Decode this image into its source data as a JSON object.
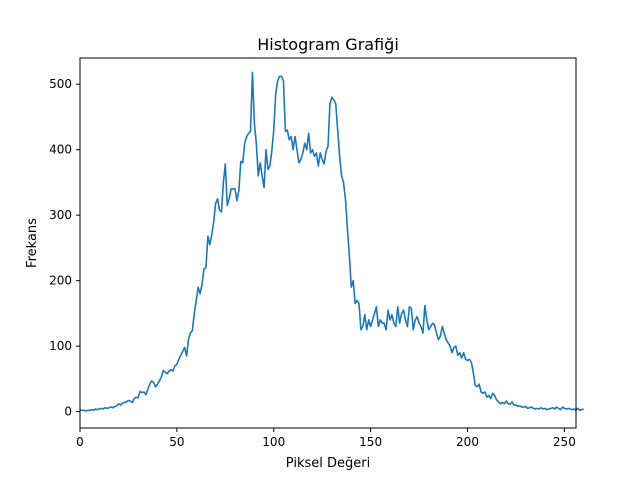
{
  "chart_data": {
    "type": "line",
    "title": "Histogram Grafiği",
    "xlabel": "Piksel Değeri",
    "ylabel": "Frekans",
    "xlim": [
      0,
      256
    ],
    "ylim": [
      -25,
      540
    ],
    "x_ticks": [
      0,
      50,
      100,
      150,
      200,
      250
    ],
    "y_ticks": [
      0,
      100,
      200,
      300,
      400,
      500
    ],
    "grid": false,
    "legend": "none",
    "series": [
      {
        "color": "#1f77b4",
        "values": [
          3,
          2,
          2,
          1,
          2,
          2,
          3,
          2,
          4,
          3,
          4,
          5,
          4,
          6,
          5,
          6,
          7,
          6,
          8,
          9,
          12,
          10,
          13,
          14,
          15,
          17,
          16,
          14,
          20,
          22,
          21,
          31,
          29,
          30,
          26,
          34,
          42,
          47,
          44,
          38,
          42,
          47,
          53,
          63,
          60,
          58,
          62,
          64,
          62,
          70,
          72,
          80,
          86,
          92,
          98,
          85,
          110,
          120,
          124,
          150,
          170,
          190,
          180,
          195,
          218,
          220,
          268,
          255,
          270,
          290,
          318,
          325,
          308,
          305,
          350,
          378,
          315,
          325,
          340,
          340,
          340,
          322,
          338,
          382,
          380,
          410,
          420,
          425,
          428,
          518,
          440,
          410,
          360,
          380,
          360,
          342,
          400,
          370,
          375,
          398,
          430,
          485,
          505,
          512,
          512,
          505,
          428,
          430,
          415,
          420,
          400,
          420,
          400,
          380,
          385,
          395,
          410,
          400,
          425,
          395,
          400,
          390,
          395,
          375,
          395,
          385,
          378,
          398,
          405,
          470,
          480,
          476,
          470,
          430,
          390,
          360,
          350,
          325,
          280,
          240,
          190,
          200,
          165,
          170,
          165,
          125,
          130,
          148,
          125,
          140,
          130,
          140,
          150,
          160,
          130,
          140,
          135,
          135,
          125,
          155,
          140,
          148,
          135,
          130,
          160,
          135,
          150,
          155,
          140,
          130,
          160,
          158,
          125,
          140,
          145,
          135,
          130,
          120,
          162,
          140,
          125,
          130,
          135,
          132,
          120,
          110,
          115,
          130,
          120,
          110,
          105,
          100,
          90,
          98,
          100,
          86,
          90,
          82,
          90,
          80,
          78,
          80,
          75,
          60,
          40,
          38,
          42,
          30,
          28,
          30,
          22,
          25,
          20,
          28,
          25,
          18,
          15,
          12,
          14,
          12,
          16,
          12,
          11,
          15,
          10,
          10,
          8,
          9,
          7,
          7,
          8,
          5,
          6,
          7,
          5,
          4,
          5,
          4,
          6,
          4,
          5,
          3,
          4,
          5,
          6,
          4,
          7,
          5,
          3,
          7,
          5,
          4,
          5,
          4,
          3,
          4,
          2,
          5,
          2,
          3,
          4
        ]
      }
    ]
  }
}
